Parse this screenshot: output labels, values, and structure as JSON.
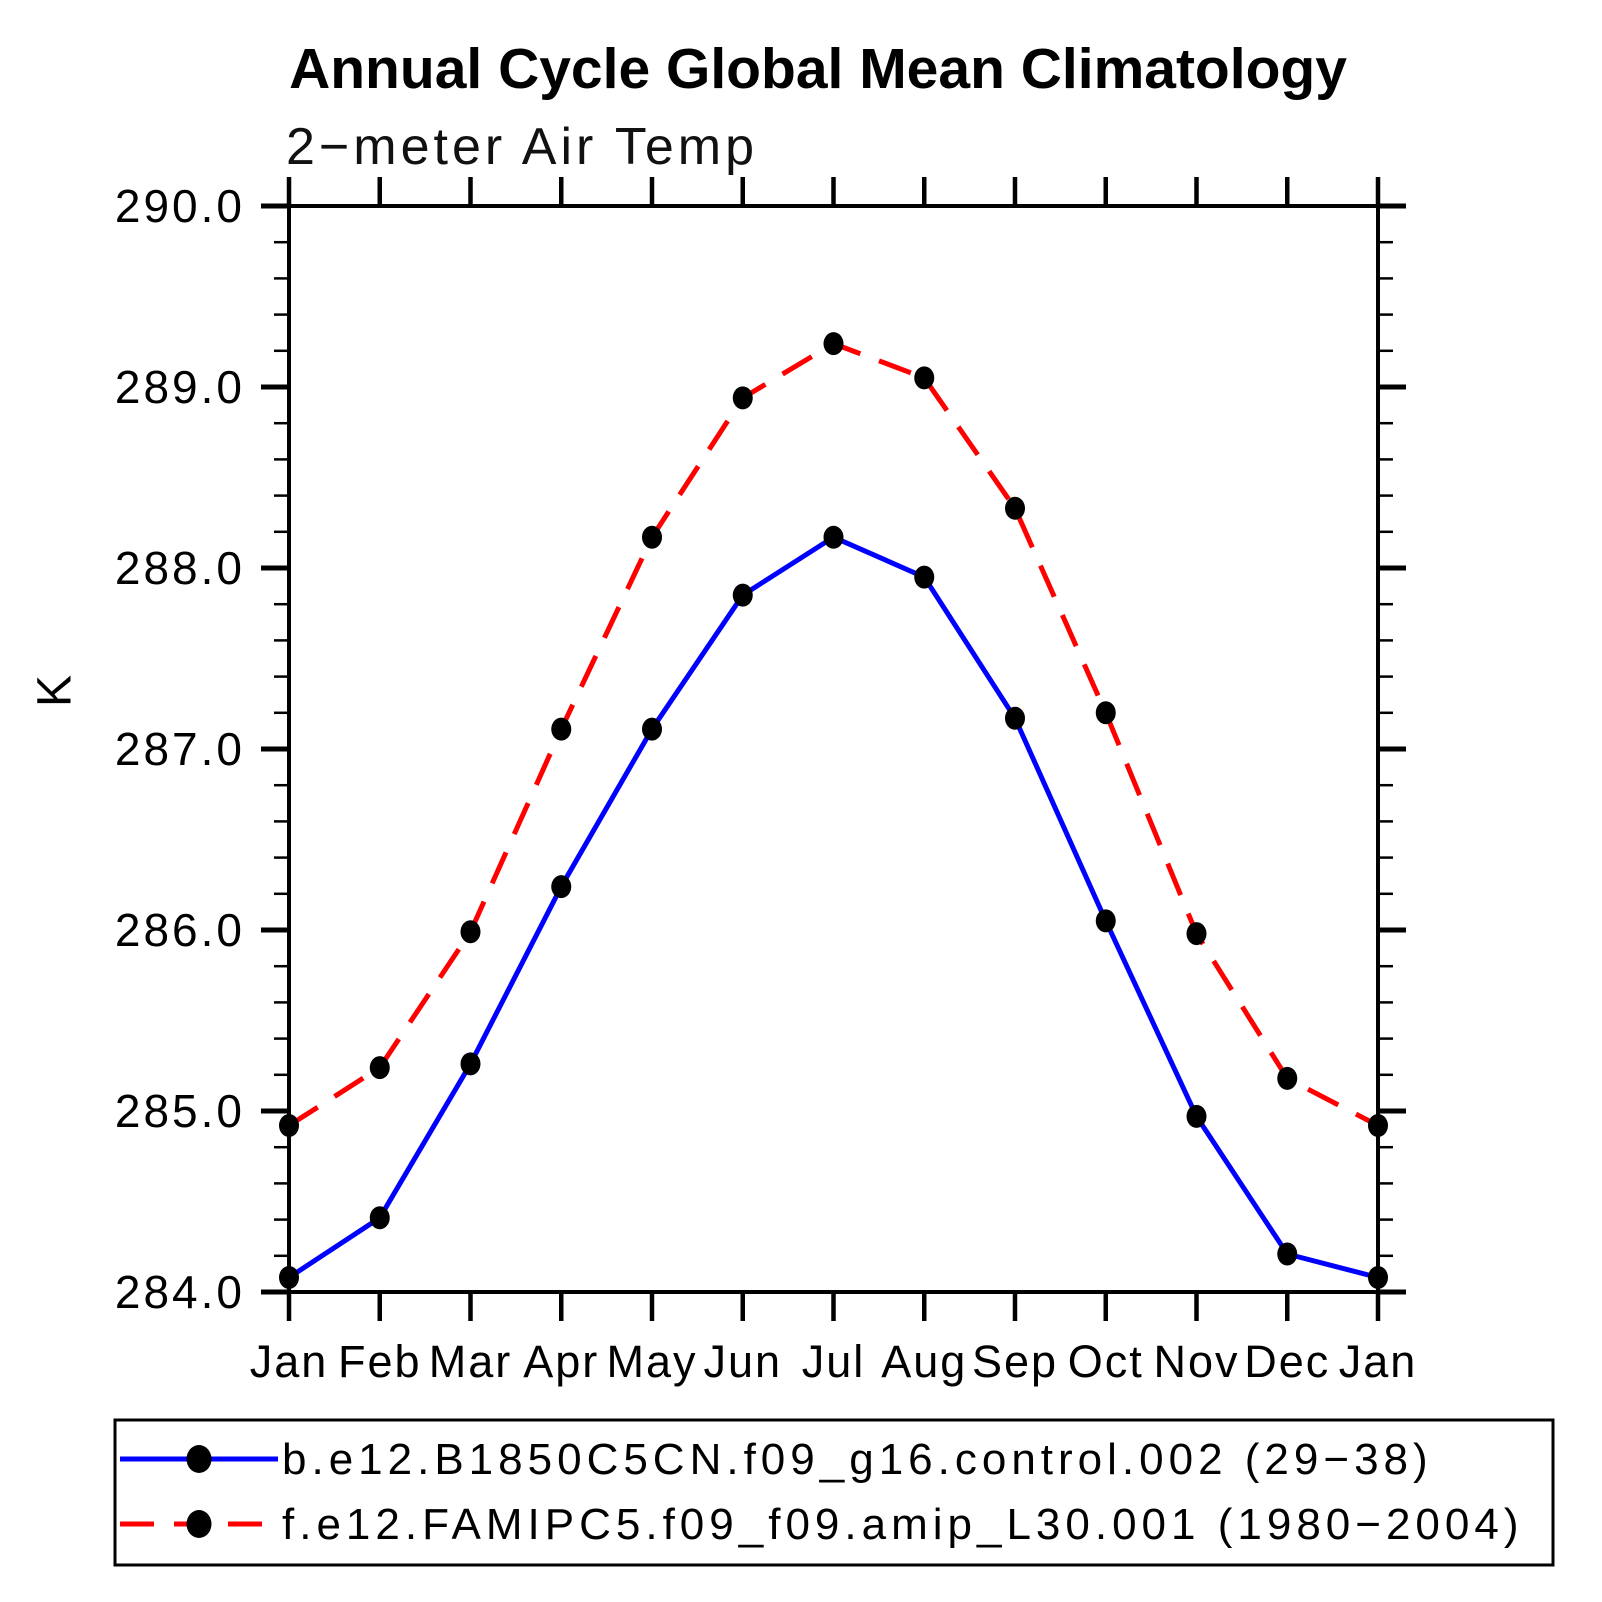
{
  "chart_data": {
    "type": "line",
    "title": "Annual Cycle Global Mean Climatology",
    "subtitle": "2−meter Air Temp",
    "ylabel": "K",
    "x_categories": [
      "Jan",
      "Feb",
      "Mar",
      "Apr",
      "May",
      "Jun",
      "Jul",
      "Aug",
      "Sep",
      "Oct",
      "Nov",
      "Dec",
      "Jan"
    ],
    "ylim": [
      284.0,
      290.0
    ],
    "ytick_interval": 1.0,
    "yminor_interval": 0.2,
    "yticks": [
      {
        "v": 290.0,
        "label": "290.0"
      },
      {
        "v": 289.0,
        "label": "289.0"
      },
      {
        "v": 288.0,
        "label": "288.0"
      },
      {
        "v": 287.0,
        "label": "287.0"
      },
      {
        "v": 286.0,
        "label": "286.0"
      },
      {
        "v": 285.0,
        "label": "285.0"
      },
      {
        "v": 284.0,
        "label": "284.0"
      }
    ],
    "grid": false,
    "legend_position": "bottom",
    "marker": {
      "shape": "circle",
      "color": "#000000"
    },
    "series": [
      {
        "name": "control-run",
        "legend_label": "b.e12.B1850C5CN.f09_g16.control.002 (29−38)",
        "color": "#0000ff",
        "line_style": "solid",
        "values": [
          284.08,
          284.41,
          285.26,
          286.24,
          287.11,
          287.85,
          288.17,
          287.95,
          287.17,
          286.05,
          284.97,
          284.21,
          284.08
        ]
      },
      {
        "name": "amip-run",
        "legend_label": "f.e12.FAMIPC5.f09_f09.amip_L30.001 (1980−2004)",
        "color": "#ff0000",
        "line_style": "dashed",
        "values": [
          284.92,
          285.24,
          285.99,
          287.11,
          288.17,
          288.94,
          289.24,
          289.05,
          288.33,
          287.2,
          285.98,
          285.18,
          284.92
        ]
      }
    ]
  }
}
